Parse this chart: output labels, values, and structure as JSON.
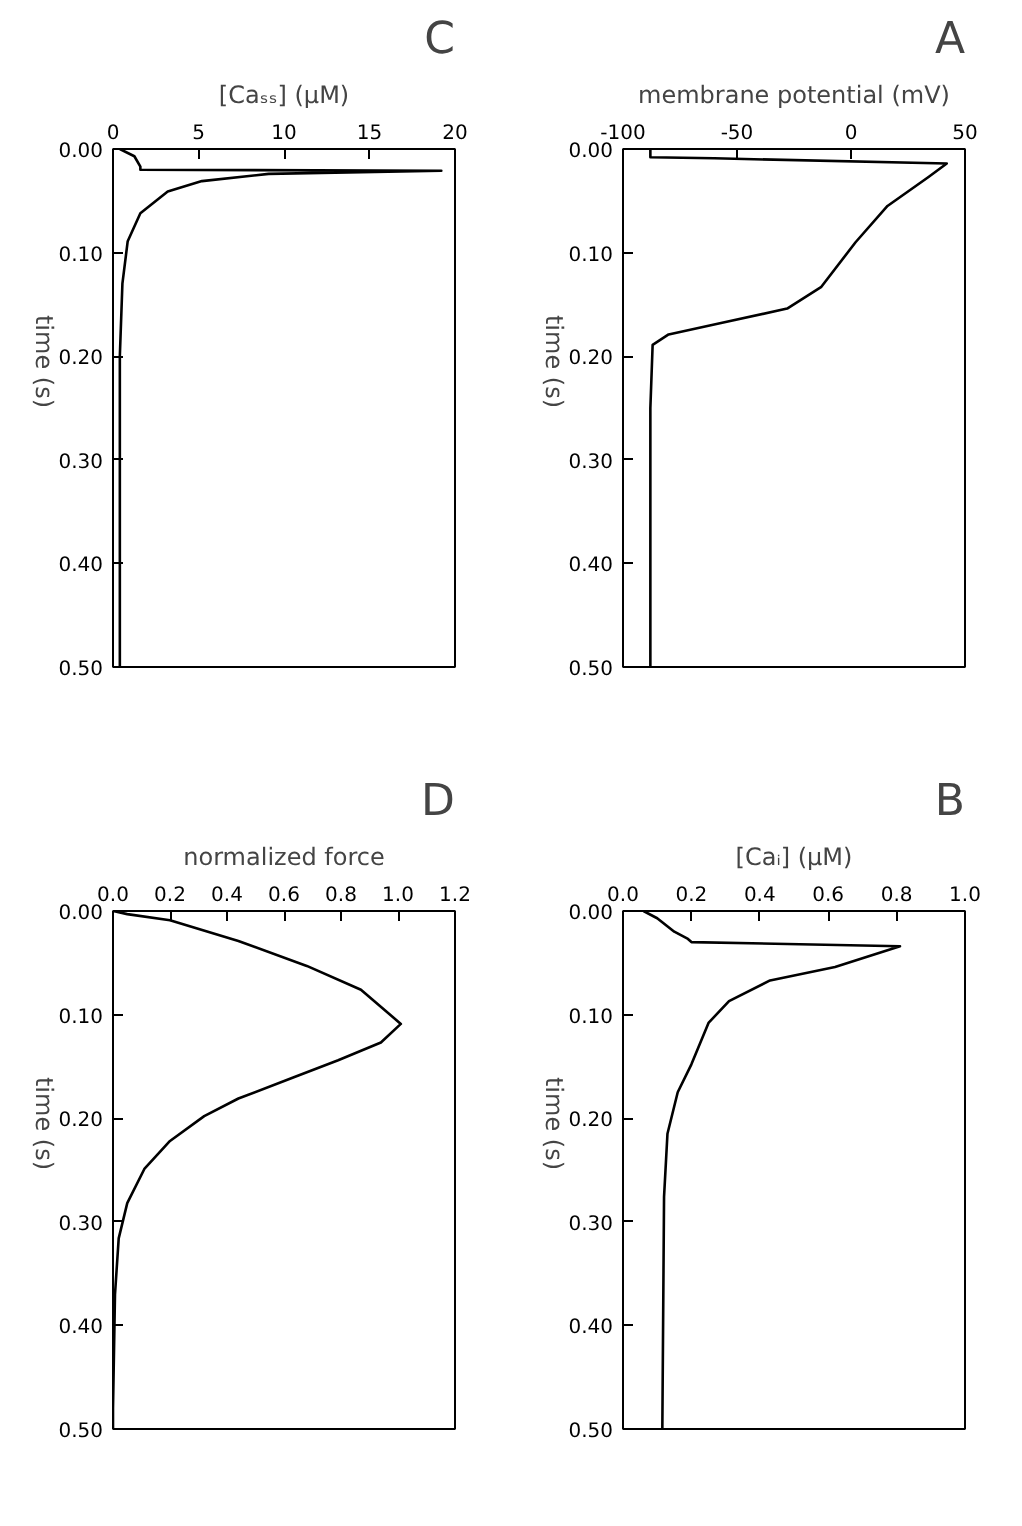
{
  "chart_data": [
    {
      "type": "line",
      "title": "C",
      "ylabel": "time (s)",
      "xlabel": "[Caₛₛ] (μM)",
      "x": [
        0.4,
        1.25,
        1.6,
        1.6,
        19.2,
        9.1,
        5.2,
        3.2,
        1.6,
        0.86,
        0.55,
        0.4,
        0.4
      ],
      "series": [
        {
          "color": "#000000",
          "values": [
            0,
            0.007,
            0.017,
            0.02,
            0.021,
            0.024,
            0.031,
            0.041,
            0.062,
            0.089,
            0.13,
            0.2,
            0.5
          ]
        }
      ],
      "ylim": [
        0.5,
        0
      ],
      "yticks": [
        {
          "value": 0,
          "label": "0.00"
        },
        {
          "value": 0.1,
          "label": "0.10"
        },
        {
          "value": 0.2,
          "label": "0.20"
        },
        {
          "value": 0.3,
          "label": "0.30"
        },
        {
          "value": 0.4,
          "label": "0.40"
        },
        {
          "value": 0.5,
          "label": "0.50"
        }
      ],
      "xlim": [
        0,
        20
      ],
      "xticks": [
        0,
        5,
        10,
        15,
        20
      ]
    },
    {
      "type": "line",
      "title": "A",
      "ylabel": "time (s)",
      "xlabel": "membrane potential (mV)",
      "x": [
        -88,
        -88,
        -60,
        42,
        34,
        16,
        2,
        -13,
        -28,
        -57,
        -80,
        -87,
        -88,
        -88
      ],
      "series": [
        {
          "color": "#000000",
          "values": [
            0,
            0.008,
            0.009,
            0.014,
            0.027,
            0.055,
            0.09,
            0.133,
            0.154,
            0.168,
            0.179,
            0.189,
            0.25,
            0.5
          ]
        }
      ],
      "ylim": [
        0.5,
        0
      ],
      "yticks": [
        {
          "value": 0,
          "label": "0.00"
        },
        {
          "value": 0.1,
          "label": "0.10"
        },
        {
          "value": 0.2,
          "label": "0.20"
        },
        {
          "value": 0.3,
          "label": "0.30"
        },
        {
          "value": 0.4,
          "label": "0.40"
        },
        {
          "value": 0.5,
          "label": "0.50"
        }
      ],
      "xlim": [
        -100,
        50
      ],
      "xticks": [
        -100,
        -50,
        0,
        50
      ]
    },
    {
      "type": "line",
      "title": "D",
      "ylabel": "time (s)",
      "xlabel": "normalized force",
      "x": [
        0,
        0.05,
        0.2,
        0.44,
        0.68,
        0.87,
        1.01,
        0.94,
        0.79,
        0.63,
        0.44,
        0.32,
        0.2,
        0.11,
        0.05,
        0.02,
        0.007,
        0,
        0
      ],
      "series": [
        {
          "color": "#000000",
          "values": [
            0,
            0.003,
            0.009,
            0.029,
            0.053,
            0.076,
            0.109,
            0.127,
            0.144,
            0.161,
            0.181,
            0.198,
            0.222,
            0.249,
            0.282,
            0.316,
            0.37,
            0.48,
            0.5
          ]
        }
      ],
      "ylim": [
        0.5,
        0
      ],
      "yticks": [
        {
          "value": 0,
          "label": "0.00"
        },
        {
          "value": 0.1,
          "label": "0.10"
        },
        {
          "value": 0.2,
          "label": "0.20"
        },
        {
          "value": 0.3,
          "label": "0.30"
        },
        {
          "value": 0.4,
          "label": "0.40"
        },
        {
          "value": 0.5,
          "label": "0.50"
        }
      ],
      "xlim": [
        0,
        1.2
      ],
      "xticks": [
        {
          "value": 0,
          "label": "0.0"
        },
        {
          "value": 0.2,
          "label": "0.2"
        },
        {
          "value": 0.4,
          "label": "0.4"
        },
        {
          "value": 0.6,
          "label": "0.6"
        },
        {
          "value": 0.8,
          "label": "0.8"
        },
        {
          "value": 1.0,
          "label": "1.0"
        },
        {
          "value": 1.2,
          "label": "1.2"
        }
      ]
    },
    {
      "type": "line",
      "title": "B",
      "ylabel": "time (s)",
      "xlabel": "[Caᵢ] (μM)",
      "x": [
        0.06,
        0.1,
        0.15,
        0.19,
        0.2,
        0.81,
        0.62,
        0.43,
        0.31,
        0.25,
        0.2,
        0.16,
        0.13,
        0.12,
        0.115
      ],
      "series": [
        {
          "color": "#000000",
          "values": [
            0,
            0.007,
            0.02,
            0.027,
            0.03,
            0.034,
            0.054,
            0.067,
            0.087,
            0.108,
            0.148,
            0.175,
            0.215,
            0.276,
            0.5
          ]
        }
      ],
      "ylim": [
        0.5,
        0
      ],
      "yticks": [
        {
          "value": 0,
          "label": "0.00"
        },
        {
          "value": 0.1,
          "label": "0.10"
        },
        {
          "value": 0.2,
          "label": "0.20"
        },
        {
          "value": 0.3,
          "label": "0.30"
        },
        {
          "value": 0.4,
          "label": "0.40"
        },
        {
          "value": 0.5,
          "label": "0.50"
        }
      ],
      "xlim": [
        0,
        1.0
      ],
      "xticks": [
        {
          "value": 0,
          "label": "0.0"
        },
        {
          "value": 0.2,
          "label": "0.2"
        },
        {
          "value": 0.4,
          "label": "0.4"
        },
        {
          "value": 0.6,
          "label": "0.6"
        },
        {
          "value": 0.8,
          "label": "0.8"
        },
        {
          "value": 1.0,
          "label": "1.0"
        }
      ]
    }
  ]
}
